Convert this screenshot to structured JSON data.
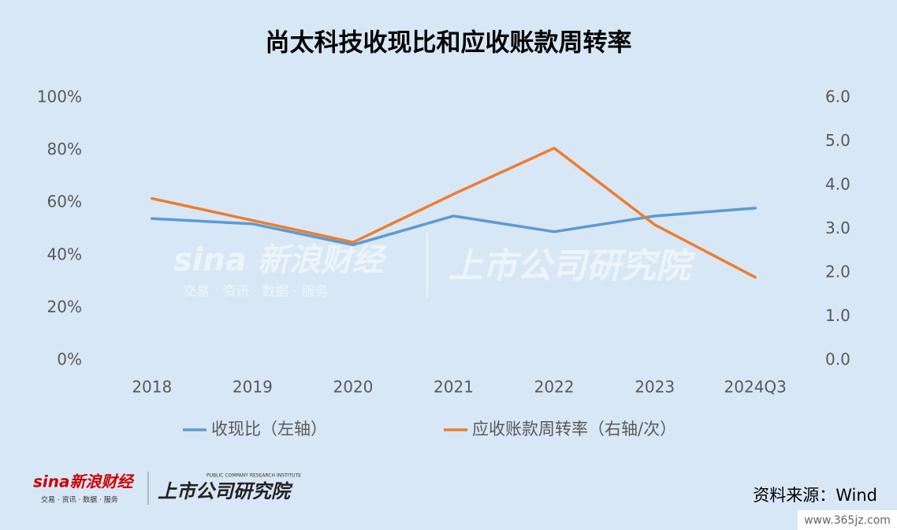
{
  "chart_data": {
    "type": "line",
    "title": "尚太科技收现比和应收账款周转率",
    "categories": [
      "2018",
      "2019",
      "2020",
      "2021",
      "2022",
      "2023",
      "2024Q3"
    ],
    "series": [
      {
        "name": "收现比（左轴）",
        "color": "#5b9bd5",
        "values": [
          54,
          52,
          44,
          55,
          49,
          55,
          58
        ]
      },
      {
        "name": "应收账款周转率（右轴/次）",
        "color": "#ed7d31",
        "axis": "y2",
        "values": [
          3.7,
          3.2,
          2.7,
          3.8,
          4.85,
          3.1,
          1.9
        ]
      }
    ],
    "ylim": [
      0,
      100
    ],
    "yticks": [
      {
        "value": 0,
        "label": "0%"
      },
      {
        "value": 20,
        "label": "20%"
      },
      {
        "value": 40,
        "label": "40%"
      },
      {
        "value": 60,
        "label": "60%"
      },
      {
        "value": 80,
        "label": "80%"
      },
      {
        "value": 100,
        "label": "100%"
      }
    ],
    "y2lim": [
      0,
      6
    ],
    "y2ticks": [
      {
        "value": 0,
        "label": "0.0"
      },
      {
        "value": 1,
        "label": "1.0"
      },
      {
        "value": 2,
        "label": "2.0"
      },
      {
        "value": 3,
        "label": "3.0"
      },
      {
        "value": 4,
        "label": "4.0"
      },
      {
        "value": 5,
        "label": "5.0"
      },
      {
        "value": 6,
        "label": "6.0"
      }
    ],
    "grid": false,
    "legend": "bottom",
    "annotations": {
      "watermark_brand": "sina 新浪财经",
      "watermark_tagline": "交易 · 资讯 · 数据 · 服务",
      "watermark_institute": "上市公司研究院",
      "logo_brand": "sina新浪财经",
      "logo_tagline": "交易 · 资讯 · 数据 · 服务",
      "logo_institute": "上市公司研究院",
      "logo_institute_en": "PUBLIC COMPANY RESEARCH INSTITUTE",
      "source": "资料来源：Wind",
      "site": "www.365jz.com"
    }
  }
}
